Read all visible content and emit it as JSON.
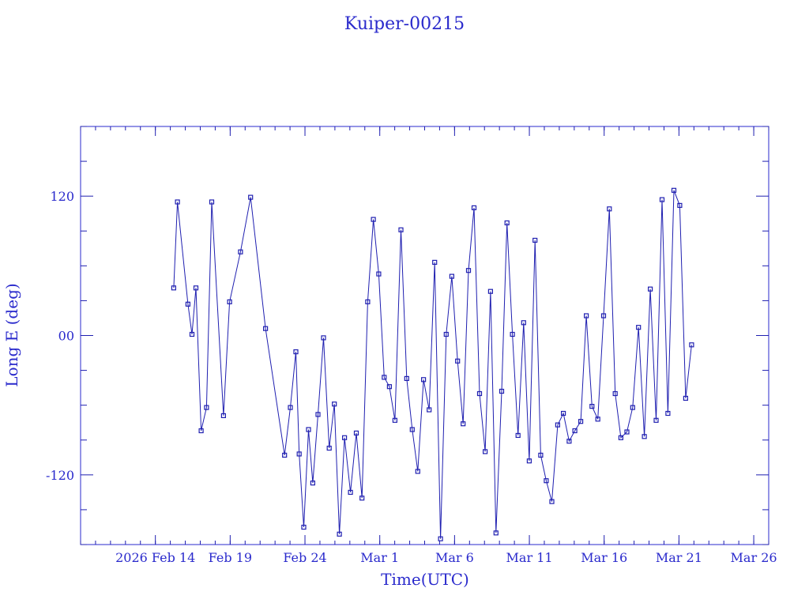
{
  "chart_data": {
    "type": "scatter",
    "title": "Kuiper-00215",
    "xlabel": "Time(UTC)",
    "ylabel": "Long E (deg)",
    "color": "#1f1fb0",
    "ylim": [
      -180,
      180
    ],
    "xlim": [
      "2026-02-09",
      "2026-03-27"
    ],
    "y_ticks": [
      120,
      0,
      -120
    ],
    "y_tick_labels": [
      "120",
      "00",
      "-120"
    ],
    "x_ticks": [
      {
        "date": "2026-02-14",
        "label": "2026 Feb 14"
      },
      {
        "date": "2026-02-19",
        "label": "Feb 19"
      },
      {
        "date": "2026-02-24",
        "label": "Feb 24"
      },
      {
        "date": "2026-03-01",
        "label": "Mar 1"
      },
      {
        "date": "2026-03-06",
        "label": "Mar 6"
      },
      {
        "date": "2026-03-11",
        "label": "Mar 11"
      },
      {
        "date": "2026-03-16",
        "label": "Mar 16"
      },
      {
        "date": "2026-03-21",
        "label": "Mar 21"
      },
      {
        "date": "2026-03-26",
        "label": "Mar 26"
      }
    ],
    "grid": false,
    "series": [
      {
        "x": [
          "2026-02-15T05:25",
          "2026-02-15T11:26",
          "2026-02-16T04:12",
          "2026-02-16T10:41",
          "2026-02-16T17:07",
          "2026-02-17T01:29",
          "2026-02-17T10:04",
          "2026-02-17T18:25",
          "2026-02-18T13:16",
          "2026-02-18T23:05",
          "2026-02-19T16:30",
          "2026-02-20T08:47",
          "2026-02-21T08:43",
          "2026-02-22T15:18",
          "2026-02-23T00:28",
          "2026-02-23T09:21",
          "2026-02-23T14:41",
          "2026-02-23T22:06",
          "2026-02-24T05:44",
          "2026-02-24T12:30",
          "2026-02-24T20:53",
          "2026-02-25T05:46",
          "2026-02-25T14:53",
          "2026-02-25T23:11",
          "2026-02-26T07:13",
          "2026-02-26T15:29",
          "2026-02-27T01:00",
          "2026-02-27T10:19",
          "2026-02-27T19:27",
          "2026-02-28T04:34",
          "2026-02-28T13:43",
          "2026-02-28T22:20",
          "2026-03-01T07:04",
          "2026-03-01T15:30",
          "2026-03-02T00:19",
          "2026-03-02T09:56",
          "2026-03-02T19:13",
          "2026-03-03T04:09",
          "2026-03-03T13:02",
          "2026-03-03T22:11",
          "2026-03-04T07:16",
          "2026-03-04T16:03",
          "2026-03-05T01:28",
          "2026-03-05T10:38",
          "2026-03-05T19:34",
          "2026-03-06T04:52",
          "2026-03-06T13:41",
          "2026-03-06T22:24",
          "2026-03-07T07:11",
          "2026-03-07T16:07",
          "2026-03-08T01:05",
          "2026-03-08T09:44",
          "2026-03-08T18:30",
          "2026-03-09T03:37",
          "2026-03-09T12:04",
          "2026-03-09T20:52",
          "2026-03-10T05:46",
          "2026-03-10T14:49",
          "2026-03-10T23:47",
          "2026-03-11T09:04",
          "2026-03-11T18:10",
          "2026-03-12T03:05",
          "2026-03-12T12:05",
          "2026-03-12T21:25",
          "2026-03-13T06:38",
          "2026-03-13T15:50",
          "2026-03-14T00:58",
          "2026-03-14T10:27",
          "2026-03-14T19:17",
          "2026-03-15T04:28",
          "2026-03-15T13:53",
          "2026-03-15T23:07",
          "2026-03-16T08:19",
          "2026-03-16T17:42",
          "2026-03-17T02:54",
          "2026-03-17T12:26",
          "2026-03-17T21:42",
          "2026-03-18T07:10",
          "2026-03-18T16:31",
          "2026-03-19T01:58",
          "2026-03-19T11:24",
          "2026-03-19T20:50",
          "2026-03-20T06:19",
          "2026-03-20T15:53",
          "2026-03-21T01:16",
          "2026-03-21T10:49",
          "2026-03-21T20:17"
        ],
        "y": [
          41,
          115,
          27,
          1,
          41,
          -82,
          -62,
          115,
          -69,
          29,
          72,
          119,
          6,
          -103,
          -62,
          -14,
          -102,
          -165,
          -81,
          -127,
          -68,
          -2,
          -97,
          -59,
          -171,
          -88,
          -135,
          -84,
          -140,
          29,
          100,
          53,
          -36,
          -44,
          -73,
          91,
          -37,
          -81,
          -117,
          -38,
          -64,
          63,
          -175,
          1,
          51,
          -22,
          -76,
          56,
          110,
          -50,
          -100,
          38,
          -170,
          -48,
          97,
          1,
          -86,
          11,
          -108,
          82,
          -103,
          -125,
          -143,
          -77,
          -67,
          -91,
          -82,
          -74,
          17,
          -61,
          -72,
          17,
          109,
          -50,
          -88,
          -83,
          -62,
          7,
          -87,
          40,
          -73,
          117,
          -67,
          125,
          112,
          -54,
          -8
        ]
      }
    ]
  }
}
